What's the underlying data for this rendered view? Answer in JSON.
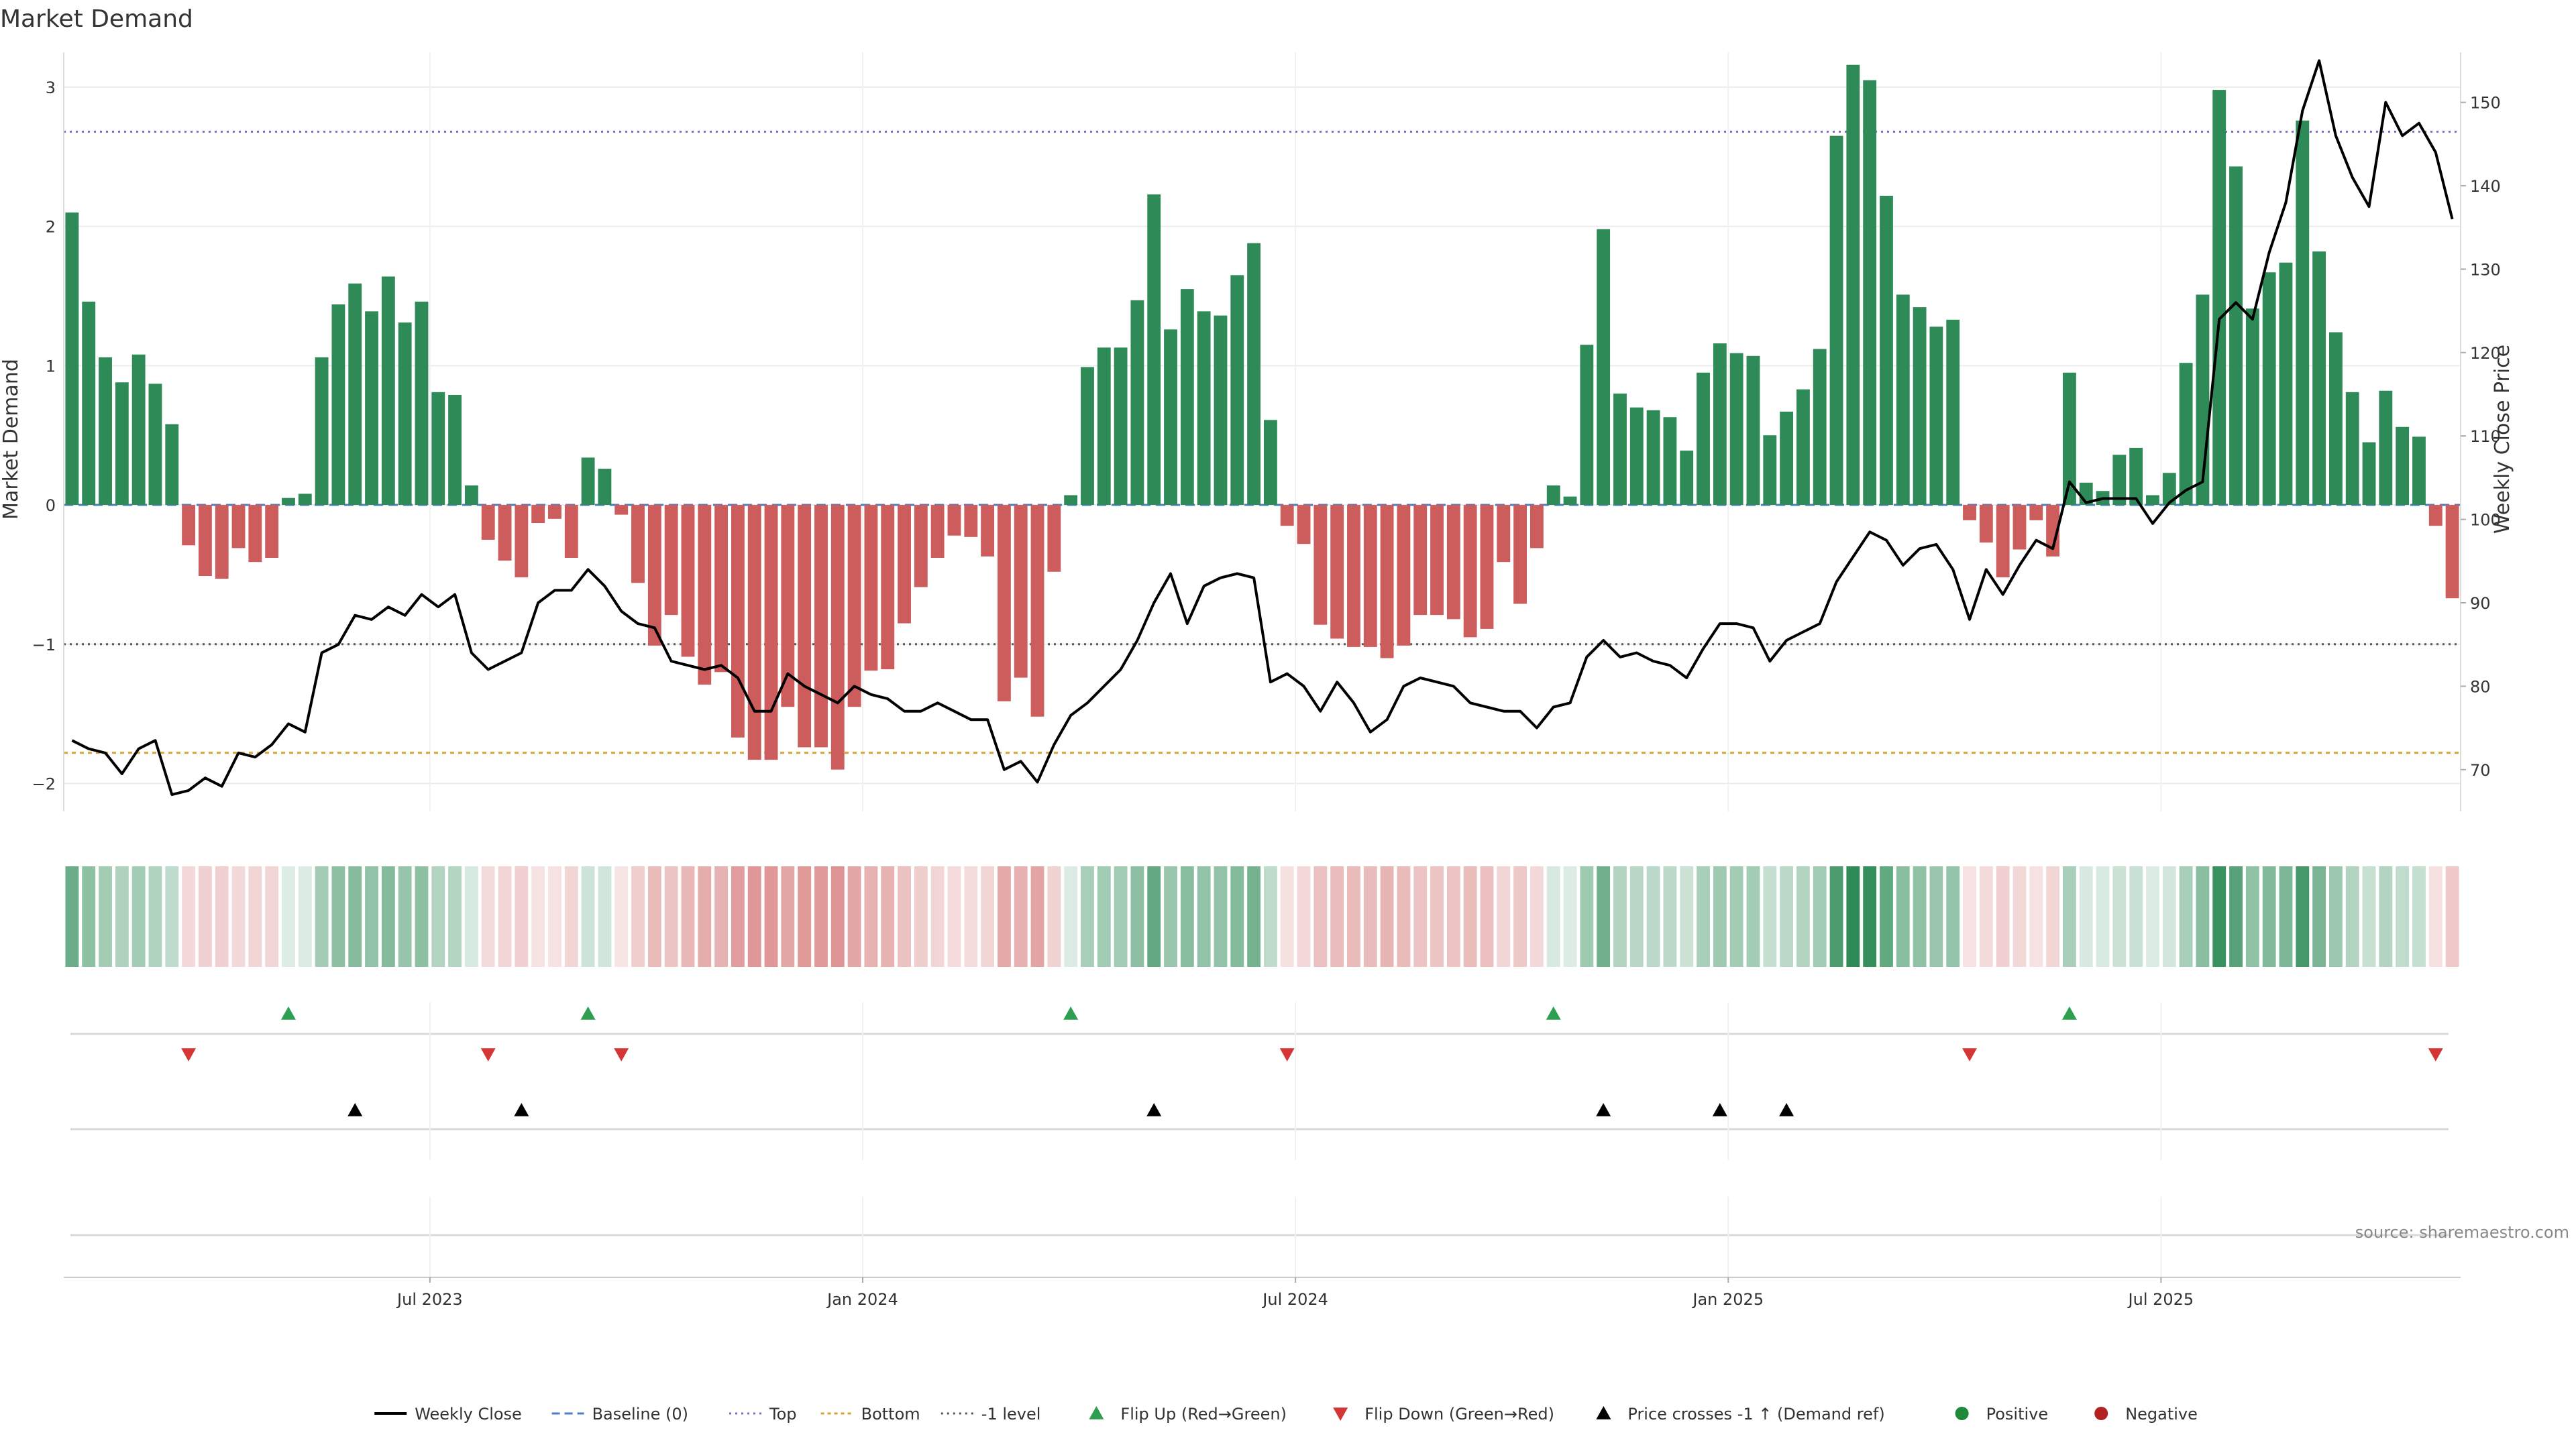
{
  "chart_data": {
    "type": "bar",
    "title": "Market Demand",
    "ylabel": "Market Demand",
    "y2label": "Weekly Close Price",
    "ylim": [
      -2.2,
      3.25
    ],
    "y2lim": [
      65,
      156
    ],
    "yticks": [
      -2,
      -1,
      0,
      1,
      2,
      3
    ],
    "y2ticks": [
      70,
      80,
      90,
      100,
      110,
      120,
      130,
      140,
      150
    ],
    "x_tick_labels": [
      {
        "label": "Jul 2023",
        "week": 22
      },
      {
        "label": "Jan 2024",
        "week": 48
      },
      {
        "label": "Jul 2024",
        "week": 74
      },
      {
        "label": "Jan 2025",
        "week": 100
      },
      {
        "label": "Jul 2025",
        "week": 126
      }
    ],
    "weeks": 144,
    "demand_values": [
      2.1,
      1.46,
      1.06,
      0.88,
      1.08,
      0.87,
      0.58,
      -0.29,
      -0.51,
      -0.53,
      -0.31,
      -0.41,
      -0.38,
      0.05,
      0.08,
      1.06,
      1.44,
      1.59,
      1.39,
      1.64,
      1.31,
      1.46,
      0.81,
      0.79,
      0.14,
      -0.25,
      -0.4,
      -0.52,
      -0.13,
      -0.1,
      -0.38,
      0.34,
      0.26,
      -0.07,
      -0.56,
      -1.01,
      -0.79,
      -1.09,
      -1.29,
      -1.2,
      -1.67,
      -1.83,
      -1.83,
      -1.45,
      -1.74,
      -1.74,
      -1.9,
      -1.45,
      -1.19,
      -1.18,
      -0.85,
      -0.59,
      -0.38,
      -0.22,
      -0.23,
      -0.37,
      -1.41,
      -1.24,
      -1.52,
      -0.48,
      0.07,
      0.99,
      1.13,
      1.13,
      1.47,
      2.23,
      1.26,
      1.55,
      1.39,
      1.36,
      1.65,
      1.88,
      0.61,
      -0.15,
      -0.28,
      -0.86,
      -0.96,
      -1.02,
      -1.02,
      -1.1,
      -1.01,
      -0.79,
      -0.79,
      -0.82,
      -0.95,
      -0.89,
      -0.41,
      -0.71,
      -0.31,
      0.14,
      0.06,
      1.15,
      1.98,
      0.8,
      0.7,
      0.68,
      0.63,
      0.39,
      0.95,
      1.16,
      1.09,
      1.07,
      0.5,
      0.67,
      0.83,
      1.12,
      2.65,
      3.16,
      3.05,
      2.22,
      1.51,
      1.42,
      1.28,
      1.33,
      -0.11,
      -0.27,
      -0.52,
      -0.32,
      -0.11,
      -0.37,
      0.95,
      0.16,
      0.1,
      0.36,
      0.41,
      0.07,
      0.23,
      1.02,
      1.51,
      2.98,
      2.43,
      1.41,
      1.67,
      1.74,
      2.76,
      1.82,
      1.24,
      0.81,
      0.45,
      0.82,
      0.56,
      0.49,
      -0.15,
      -0.67
    ],
    "price_values": [
      73.5,
      72.5,
      72,
      69.5,
      72.5,
      73.5,
      67,
      67.5,
      69,
      68,
      72,
      71.5,
      73,
      75.5,
      74.5,
      84,
      85,
      88.5,
      88,
      89.5,
      88.5,
      91,
      89.5,
      91,
      84,
      82,
      83,
      84,
      90,
      91.5,
      91.5,
      94,
      92,
      89,
      87.5,
      87,
      83,
      82.5,
      82,
      82.5,
      81,
      77,
      77,
      81.5,
      80,
      79,
      78,
      80,
      79,
      78.5,
      77,
      77,
      78,
      77,
      76,
      76,
      70,
      71,
      68.5,
      73,
      76.5,
      78,
      80,
      82,
      85.5,
      90,
      93.5,
      87.5,
      92,
      93,
      93.5,
      93,
      80.5,
      81.5,
      80,
      77,
      80.5,
      78,
      74.5,
      76,
      80,
      81,
      80.5,
      80,
      78,
      77.5,
      77,
      77,
      75,
      77.5,
      78,
      83.5,
      85.5,
      83.5,
      84,
      83,
      82.5,
      81,
      84.5,
      87.5,
      87.5,
      87,
      83,
      85.5,
      86.5,
      87.5,
      92.5,
      95.5,
      98.5,
      97.5,
      94.5,
      96.5,
      97,
      94,
      88,
      94,
      91,
      94.5,
      97.5,
      96.5,
      104.5,
      102,
      102.5,
      102.5,
      102.5,
      99.5,
      102,
      103.5,
      104.5,
      124,
      126,
      124,
      132,
      138,
      149,
      155,
      146,
      141,
      137.5,
      150,
      146,
      147.5,
      144,
      136
    ]
  },
  "levels": {
    "top": 2.68,
    "bottom": -1.78,
    "minus_one": -1.0,
    "baseline": 0
  },
  "heat_strip": {
    "min_alpha": 0.15
  },
  "markers": {
    "flip_up": [
      13,
      31,
      60,
      89,
      120
    ],
    "flip_down": [
      7,
      25,
      33,
      73,
      114,
      142
    ],
    "price_cross": [
      17,
      27,
      65,
      92,
      99,
      103
    ]
  },
  "legend": [
    {
      "key": "weekly-close",
      "label": "Weekly Close"
    },
    {
      "key": "baseline",
      "label": "Baseline (0)"
    },
    {
      "key": "top",
      "label": "Top"
    },
    {
      "key": "bottom",
      "label": "Bottom"
    },
    {
      "key": "minus-one",
      "label": "-1 level"
    },
    {
      "key": "flip-up",
      "label": "Flip Up (Red→Green)"
    },
    {
      "key": "flip-down",
      "label": "Flip Down (Green→Red)"
    },
    {
      "key": "price-cross",
      "label": "Price crosses -1 ↑ (Demand ref)"
    },
    {
      "key": "positive",
      "label": "Positive"
    },
    {
      "key": "negative",
      "label": "Negative"
    }
  ],
  "source": "source: sharemaestro.com",
  "colors": {
    "positive": "#2e8b57",
    "negative": "#cd5c5c",
    "price": "#000000",
    "baseline": "#4a7fc1",
    "top": "#7b68c8",
    "bottom": "#d9a233",
    "minus_one": "#555555",
    "flip_up": "#2e9e50",
    "flip_down": "#d43535",
    "cross": "#000000",
    "legend_positive": "#1f8a3a",
    "legend_negative": "#b22222"
  }
}
